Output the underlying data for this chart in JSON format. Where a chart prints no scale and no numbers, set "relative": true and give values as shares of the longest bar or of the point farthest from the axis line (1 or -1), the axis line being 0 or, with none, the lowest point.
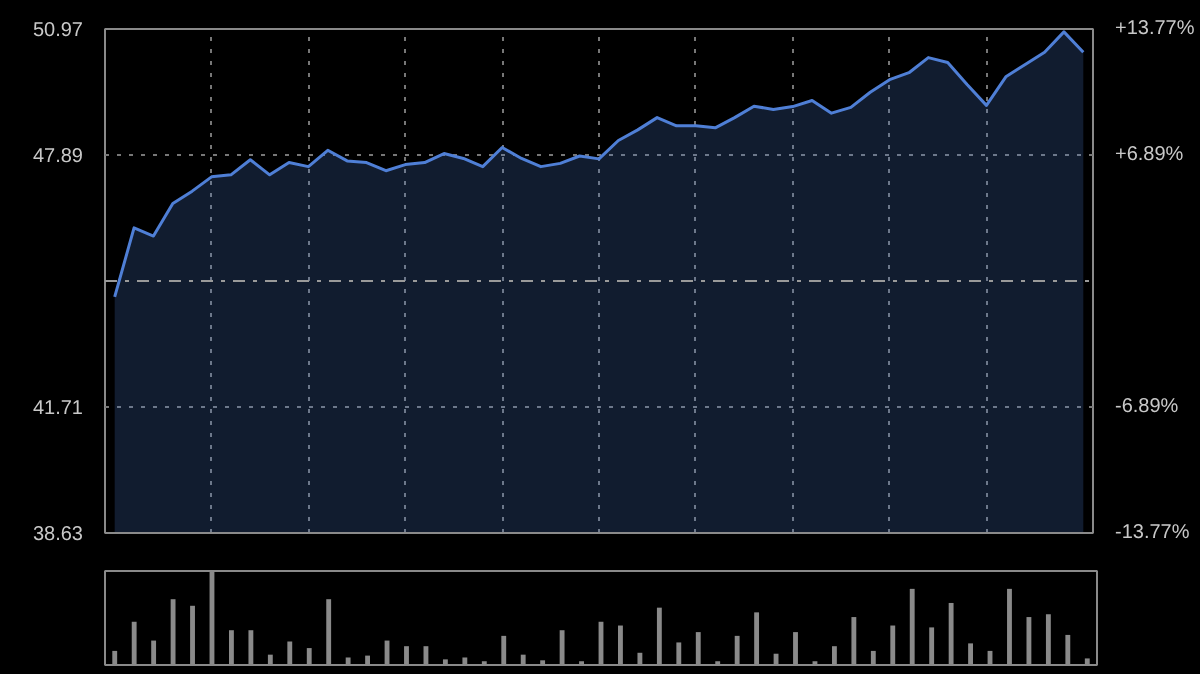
{
  "chart_data": [
    {
      "type": "area",
      "categories": [
        null,
        null,
        null,
        null,
        null,
        null,
        null,
        null,
        null,
        null,
        null,
        null,
        null,
        null,
        null,
        null,
        null,
        null,
        null,
        null,
        null,
        null,
        null,
        null,
        null,
        null,
        null,
        null,
        null,
        null,
        null,
        null,
        null,
        null,
        null,
        null,
        null,
        null,
        null,
        null,
        null,
        null,
        null,
        null,
        null,
        null,
        null,
        null,
        null,
        null,
        null
      ],
      "series": [
        {
          "color": "#4f7fd6",
          "values": [
            44.41,
            46.1,
            45.9,
            46.7,
            47.0,
            47.35,
            47.4,
            47.77,
            47.4,
            47.7,
            47.6,
            48.0,
            47.74,
            47.7,
            47.5,
            47.65,
            47.7,
            47.92,
            47.8,
            47.6,
            48.07,
            47.8,
            47.6,
            47.68,
            47.86,
            47.79,
            48.24,
            48.5,
            48.8,
            48.6,
            48.6,
            48.55,
            48.8,
            49.08,
            49.0,
            49.07,
            49.22,
            48.91,
            49.05,
            49.42,
            49.73,
            49.9,
            50.27,
            50.15,
            49.61,
            49.1,
            49.8,
            50.1,
            50.4,
            50.9,
            50.4
          ]
        }
      ],
      "ylim": [
        38.63,
        50.97
      ],
      "yticks": [
        38.63,
        41.71,
        47.89,
        50.97
      ],
      "y2lim": [
        -13.77,
        13.77
      ],
      "y2ticks": [
        {
          "value": -13.77,
          "label": "-13.77%"
        },
        {
          "value": -6.89,
          "label": "-6.89%"
        },
        {
          "value": 6.89,
          "label": "+6.89%"
        },
        {
          "value": 13.77,
          "label": "+13.77%"
        }
      ],
      "ref_lines": [
        {
          "axis": "y",
          "value": 44.8,
          "color": "#9a9a9a",
          "line_style": "dashdot"
        }
      ],
      "grid": true,
      "line_style": "solid"
    },
    {
      "type": "bar",
      "relative": true,
      "color": "#8a8a8a",
      "categories": [
        null,
        null,
        null,
        null,
        null,
        null,
        null,
        null,
        null,
        null,
        null,
        null,
        null,
        null,
        null,
        null,
        null,
        null,
        null,
        null,
        null,
        null,
        null,
        null,
        null,
        null,
        null,
        null,
        null,
        null,
        null,
        null,
        null,
        null,
        null,
        null,
        null,
        null,
        null,
        null,
        null,
        null,
        null,
        null,
        null,
        null,
        null,
        null,
        null,
        null,
        null
      ],
      "values": [
        0.15,
        0.46,
        0.26,
        0.7,
        0.63,
        1.0,
        0.37,
        0.37,
        0.11,
        0.25,
        0.18,
        0.7,
        0.08,
        0.1,
        0.26,
        0.2,
        0.2,
        0.06,
        0.08,
        0.04,
        0.31,
        0.11,
        0.05,
        0.37,
        0.04,
        0.46,
        0.42,
        0.13,
        0.61,
        0.24,
        0.35,
        0.04,
        0.31,
        0.56,
        0.12,
        0.35,
        0.04,
        0.2,
        0.51,
        0.15,
        0.42,
        0.81,
        0.4,
        0.66,
        0.23,
        0.15,
        0.81,
        0.51,
        0.54,
        0.32,
        0.07
      ]
    }
  ]
}
